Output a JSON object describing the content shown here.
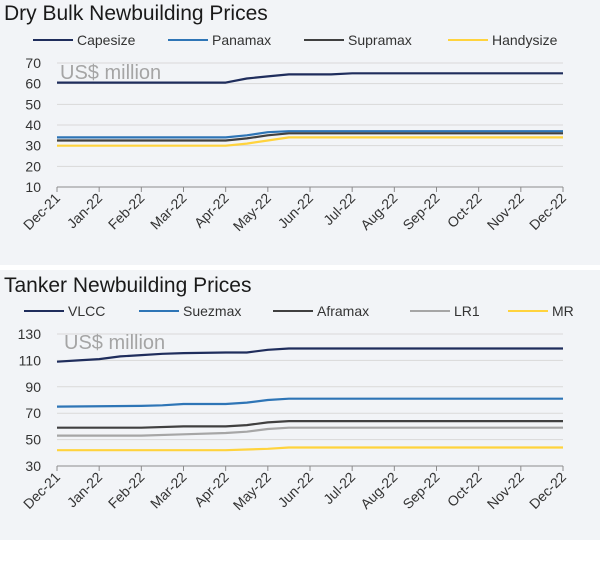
{
  "chart_data": [
    {
      "type": "line",
      "title": "Dry Bulk Newbuilding Prices",
      "ylabel": "US$ million",
      "xlabel": "",
      "ylim": [
        10,
        70
      ],
      "yticks": [
        10,
        20,
        30,
        40,
        50,
        60,
        70
      ],
      "categories": [
        "Dec-21",
        "Jan-22",
        "Feb-22",
        "Mar-22",
        "Apr-22",
        "May-22",
        "Jun-22",
        "Jul-22",
        "Aug-22",
        "Sep-22",
        "Oct-22",
        "Nov-22",
        "Dec-22"
      ],
      "series": [
        {
          "name": "Capesize",
          "color": "#1f2d5c",
          "x": [
            0,
            4,
            4.5,
            5,
            5.5,
            6.5,
            7,
            12
          ],
          "values": [
            60.5,
            60.5,
            62.5,
            63.5,
            64.5,
            64.5,
            65,
            65
          ]
        },
        {
          "name": "Panamax",
          "color": "#2e75b6",
          "x": [
            0,
            4,
            4.5,
            5,
            5.5,
            12
          ],
          "values": [
            34,
            34,
            35,
            36.5,
            37,
            37
          ]
        },
        {
          "name": "Supramax",
          "color": "#404040",
          "x": [
            0,
            4,
            4.5,
            5,
            5.5,
            12
          ],
          "values": [
            32.5,
            32.5,
            33.5,
            35,
            36,
            36
          ]
        },
        {
          "name": "Handysize",
          "color": "#ffd33d",
          "x": [
            0,
            4,
            4.5,
            5,
            5.5,
            12
          ],
          "values": [
            30,
            30,
            31,
            32.5,
            34,
            34
          ]
        }
      ]
    },
    {
      "type": "line",
      "title": "Tanker Newbuilding Prices",
      "ylabel": "US$ million",
      "xlabel": "",
      "ylim": [
        30,
        130
      ],
      "yticks": [
        30,
        50,
        70,
        90,
        110,
        130
      ],
      "categories": [
        "Dec-21",
        "Jan-22",
        "Feb-22",
        "Mar-22",
        "Apr-22",
        "May-22",
        "Jun-22",
        "Jul-22",
        "Aug-22",
        "Sep-22",
        "Oct-22",
        "Nov-22",
        "Dec-22"
      ],
      "series": [
        {
          "name": "VLCC",
          "color": "#1f2d5c",
          "x": [
            0,
            0.5,
            1,
            1.5,
            2,
            2.5,
            3,
            4,
            4.5,
            5,
            5.5,
            12
          ],
          "values": [
            109,
            110,
            111,
            113,
            114,
            115,
            115.5,
            116,
            116,
            118,
            119,
            119
          ]
        },
        {
          "name": "Suezmax",
          "color": "#2e75b6",
          "x": [
            0,
            2,
            2.5,
            3,
            4,
            4.5,
            5,
            5.5,
            12
          ],
          "values": [
            75,
            75.5,
            76,
            77,
            77,
            78,
            80,
            81,
            81
          ]
        },
        {
          "name": "Aframax",
          "color": "#404040",
          "x": [
            0,
            2,
            3,
            4,
            4.5,
            5,
            5.5,
            12
          ],
          "values": [
            59,
            59,
            60,
            60,
            61,
            63,
            64,
            64
          ]
        },
        {
          "name": "LR1",
          "color": "#a6a6a6",
          "x": [
            0,
            2,
            3,
            4,
            4.5,
            5,
            5.5,
            12
          ],
          "values": [
            53,
            53,
            54,
            55,
            56,
            58,
            59,
            59
          ]
        },
        {
          "name": "MR",
          "color": "#ffd33d",
          "x": [
            0,
            4,
            4.5,
            5,
            5.5,
            12
          ],
          "values": [
            42,
            42,
            42.5,
            43,
            44,
            44
          ]
        }
      ]
    }
  ]
}
